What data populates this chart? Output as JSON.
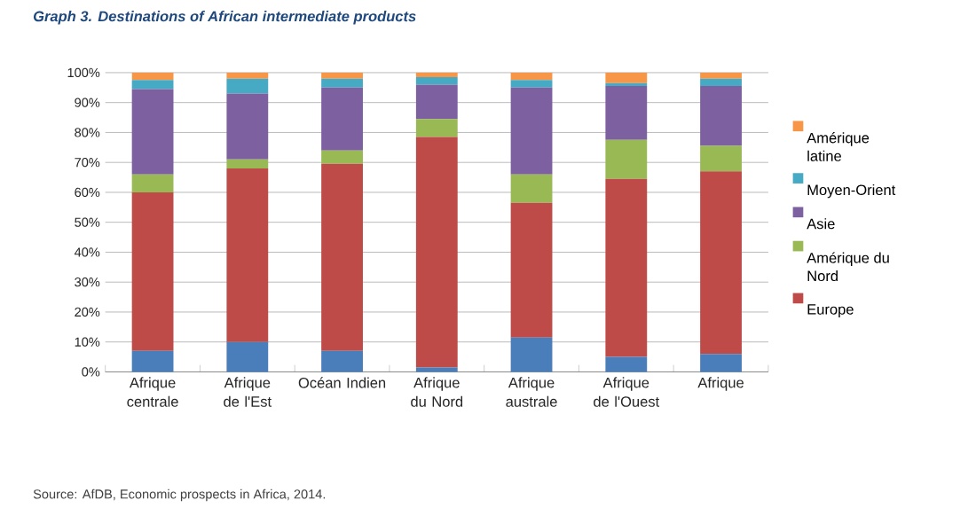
{
  "chart_data": {
    "type": "bar",
    "stacked": true,
    "title": "Graph 3. Destinations of African intermediate products",
    "annotations": [
      "Source: AfDB, Economic prospects in Africa, 2014."
    ],
    "categories": [
      "Afrique centrale",
      "Afrique de l'Est",
      "Océan Indien",
      "Afrique du Nord",
      "Afrique australe",
      "Afrique de l'Ouest",
      "Afrique"
    ],
    "series": [
      {
        "color": "#4a7ebb",
        "values": [
          7,
          10,
          7,
          1.5,
          11.5,
          5,
          6
        ]
      },
      {
        "name": "Europe",
        "color": "#be4b48",
        "values": [
          53,
          58,
          62.5,
          77,
          45,
          59.5,
          61
        ]
      },
      {
        "name": "Amérique du Nord",
        "color": "#98b954",
        "values": [
          6,
          3,
          4.5,
          6,
          9.5,
          13,
          8.5
        ]
      },
      {
        "name": "Asie",
        "color": "#7d60a0",
        "values": [
          28.5,
          22,
          21,
          11.5,
          29,
          18,
          20
        ]
      },
      {
        "name": "Moyen-Orient",
        "color": "#46aac5",
        "values": [
          3,
          5,
          3,
          2.5,
          2.5,
          1,
          2.5
        ]
      },
      {
        "name": "Amérique latine",
        "color": "#f79646",
        "values": [
          2.5,
          2,
          2,
          1.5,
          2.5,
          3.5,
          2
        ]
      }
    ],
    "ylim": [
      0,
      100
    ],
    "yticks": [
      {
        "value": 0,
        "label": "0%"
      },
      {
        "value": 10,
        "label": "10%"
      },
      {
        "value": 20,
        "label": "20%"
      },
      {
        "value": 30,
        "label": "30%"
      },
      {
        "value": 40,
        "label": "40%"
      },
      {
        "value": 50,
        "label": "50%"
      },
      {
        "value": 60,
        "label": "60%"
      },
      {
        "value": 70,
        "label": "70%"
      },
      {
        "value": 80,
        "label": "80%"
      },
      {
        "value": 90,
        "label": "90%"
      },
      {
        "value": 100,
        "label": "100%"
      }
    ],
    "grid": "y",
    "legend": "right"
  }
}
